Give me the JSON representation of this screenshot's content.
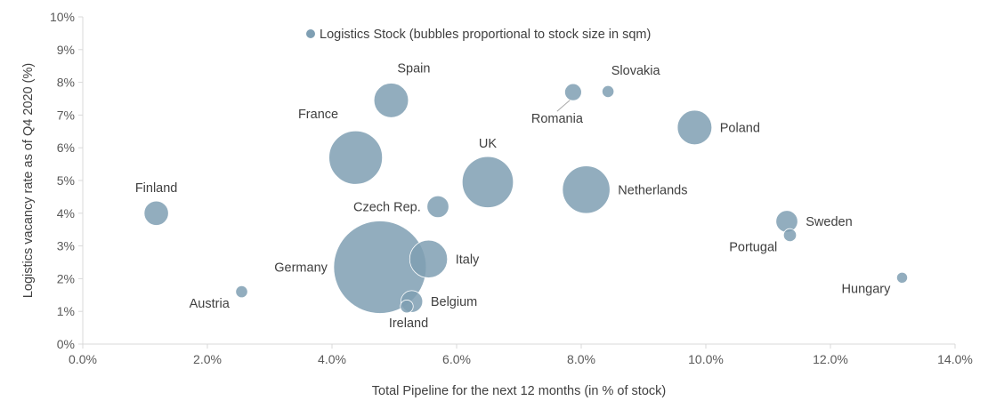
{
  "chart_data": {
    "type": "scatter",
    "title": "",
    "xlabel": "Total Pipeline for the next 12 months (in % of stock)",
    "ylabel": "Logistics vacancy rate as of Q4 2020 (%)",
    "xlim": [
      0,
      14
    ],
    "ylim": [
      0,
      10
    ],
    "x_ticks": [
      0,
      2,
      4,
      6,
      8,
      10,
      12,
      14
    ],
    "y_ticks": [
      0,
      1,
      2,
      3,
      4,
      5,
      6,
      7,
      8,
      9,
      10
    ],
    "x_tick_labels": [
      "0.0%",
      "2.0%",
      "4.0%",
      "6.0%",
      "8.0%",
      "10.0%",
      "12.0%",
      "14.0%"
    ],
    "y_tick_labels": [
      "0%",
      "1%",
      "2%",
      "3%",
      "4%",
      "5%",
      "6%",
      "7%",
      "8%",
      "9%",
      "10%"
    ],
    "grid": false,
    "legend_position": "top-center",
    "bubble_color": "#7f9fb3",
    "series": [
      {
        "name": "Logistics Stock (bubbles proportional to stock size in sqm)",
        "points": [
          {
            "label": "Finland",
            "x": 1.18,
            "y": 4.0,
            "size": 2.5,
            "label_pos": "above"
          },
          {
            "label": "Austria",
            "x": 2.55,
            "y": 1.6,
            "size": 0.6,
            "label_pos": "left-below"
          },
          {
            "label": "France",
            "x": 4.38,
            "y": 5.7,
            "size": 12.0,
            "label_pos": "upper-left"
          },
          {
            "label": "Spain",
            "x": 4.95,
            "y": 7.45,
            "size": 5.0,
            "label_pos": "upper-right"
          },
          {
            "label": "Germany",
            "x": 4.77,
            "y": 2.35,
            "size": 36.0,
            "label_pos": "left"
          },
          {
            "label": "Ireland",
            "x": 5.2,
            "y": 1.15,
            "size": 0.7,
            "label_pos": "below"
          },
          {
            "label": "Belgium",
            "x": 5.28,
            "y": 1.3,
            "size": 2.0,
            "label_pos": "right"
          },
          {
            "label": "Italy",
            "x": 5.55,
            "y": 2.6,
            "size": 6.0,
            "label_pos": "right"
          },
          {
            "label": "Czech Rep.",
            "x": 5.7,
            "y": 4.2,
            "size": 2.0,
            "label_pos": "left"
          },
          {
            "label": "UK",
            "x": 6.5,
            "y": 4.95,
            "size": 11.0,
            "label_pos": "above"
          },
          {
            "label": "Romania",
            "x": 7.87,
            "y": 7.7,
            "size": 1.2,
            "label_pos": "below-left"
          },
          {
            "label": "Slovakia",
            "x": 8.43,
            "y": 7.72,
            "size": 0.6,
            "label_pos": "upper-right"
          },
          {
            "label": "Netherlands",
            "x": 8.08,
            "y": 4.72,
            "size": 9.5,
            "label_pos": "right"
          },
          {
            "label": "Poland",
            "x": 9.82,
            "y": 6.62,
            "size": 5.0,
            "label_pos": "right"
          },
          {
            "label": "Sweden",
            "x": 11.3,
            "y": 3.75,
            "size": 2.0,
            "label_pos": "right"
          },
          {
            "label": "Portugal",
            "x": 11.35,
            "y": 3.33,
            "size": 0.7,
            "label_pos": "left-below"
          },
          {
            "label": "Hungary",
            "x": 13.15,
            "y": 2.03,
            "size": 0.5,
            "label_pos": "left-below"
          }
        ]
      }
    ]
  }
}
